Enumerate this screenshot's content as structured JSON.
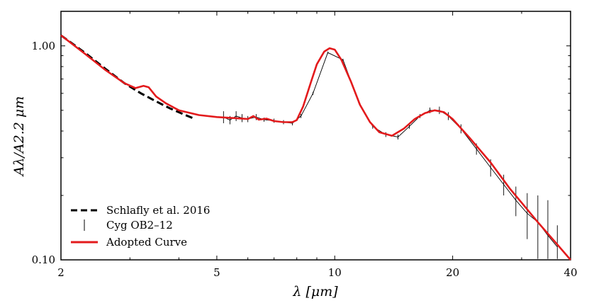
{
  "chart_data": {
    "type": "line",
    "xscale": "log",
    "yscale": "log",
    "xlim": [
      2,
      40
    ],
    "ylim": [
      0.1,
      1.45
    ],
    "xlabel": "λ [μm]",
    "ylabel": "Aλ/A2.2 μm",
    "x_ticks": [
      {
        "value": 2,
        "label": "2"
      },
      {
        "value": 5,
        "label": "5"
      },
      {
        "value": 10,
        "label": "10"
      },
      {
        "value": 20,
        "label": "20"
      },
      {
        "value": 40,
        "label": "40"
      }
    ],
    "y_ticks": [
      {
        "value": 0.1,
        "label": "0.10"
      },
      {
        "value": 1.0,
        "label": "1.00"
      }
    ],
    "legend": {
      "position": "lower-left",
      "entries": [
        {
          "label": "Schlafly et al. 2016",
          "style": "dashed",
          "color": "#000000"
        },
        {
          "label": "Cyg OB2–12",
          "style": "errorbar",
          "color": "#000000"
        },
        {
          "label": "Adopted Curve",
          "style": "solid",
          "color": "#e31a1c"
        }
      ]
    },
    "series": [
      {
        "name": "Adopted Curve",
        "color": "#e31a1c",
        "x": [
          2.0,
          2.3,
          2.6,
          2.9,
          3.1,
          3.25,
          3.35,
          3.5,
          3.7,
          4.0,
          4.5,
          5.0,
          5.5,
          6.0,
          6.2,
          6.4,
          6.7,
          7.0,
          7.4,
          7.8,
          8.0,
          8.3,
          8.7,
          9.0,
          9.4,
          9.7,
          10.0,
          10.4,
          11.0,
          11.6,
          12.3,
          13.0,
          14.0,
          15.0,
          16.0,
          17.0,
          18.0,
          19.0,
          20.0,
          22.0,
          25.0,
          28.0,
          30.0,
          33.0,
          36.0,
          40.0
        ],
        "y": [
          1.12,
          0.92,
          0.77,
          0.67,
          0.635,
          0.65,
          0.64,
          0.58,
          0.54,
          0.5,
          0.475,
          0.465,
          0.46,
          0.455,
          0.47,
          0.452,
          0.457,
          0.445,
          0.44,
          0.44,
          0.45,
          0.52,
          0.68,
          0.82,
          0.94,
          0.975,
          0.96,
          0.86,
          0.68,
          0.53,
          0.44,
          0.395,
          0.38,
          0.41,
          0.455,
          0.485,
          0.5,
          0.49,
          0.455,
          0.375,
          0.285,
          0.215,
          0.185,
          0.15,
          0.125,
          0.1
        ]
      },
      {
        "name": "Schlafly et al. 2016",
        "color": "#000000",
        "x": [
          2.0,
          2.3,
          2.6,
          2.9,
          3.2,
          3.5,
          3.8,
          4.1,
          4.4
        ],
        "y": [
          1.12,
          0.93,
          0.78,
          0.67,
          0.6,
          0.55,
          0.51,
          0.48,
          0.455
        ]
      },
      {
        "name": "Cyg OB2–12",
        "color": "#000000",
        "x": [
          5.2,
          5.4,
          5.6,
          5.8,
          6.0,
          6.3,
          6.6,
          7.0,
          7.4,
          7.8,
          8.2,
          8.8,
          9.6,
          10.5,
          11.5,
          12.5,
          13.5,
          14.5,
          15.5,
          16.5,
          17.5,
          18.5,
          19.5,
          21.0,
          23.0,
          25.0,
          27.0,
          29.0,
          31.0,
          33.0,
          35.0,
          37.0
        ],
        "y": [
          0.465,
          0.45,
          0.47,
          0.46,
          0.455,
          0.465,
          0.452,
          0.447,
          0.44,
          0.435,
          0.47,
          0.6,
          0.93,
          0.86,
          0.55,
          0.42,
          0.385,
          0.375,
          0.42,
          0.47,
          0.5,
          0.5,
          0.47,
          0.41,
          0.33,
          0.27,
          0.225,
          0.19,
          0.165,
          0.15,
          0.13,
          0.115
        ],
        "err": [
          0.03,
          0.02,
          0.025,
          0.02,
          0.015,
          0.015,
          0.01,
          0.01,
          0.01,
          0.01,
          0.01,
          0.01,
          0.01,
          0.01,
          0.01,
          0.01,
          0.01,
          0.01,
          0.01,
          0.01,
          0.015,
          0.02,
          0.02,
          0.02,
          0.02,
          0.025,
          0.025,
          0.03,
          0.04,
          0.05,
          0.06,
          0.03
        ]
      }
    ]
  }
}
